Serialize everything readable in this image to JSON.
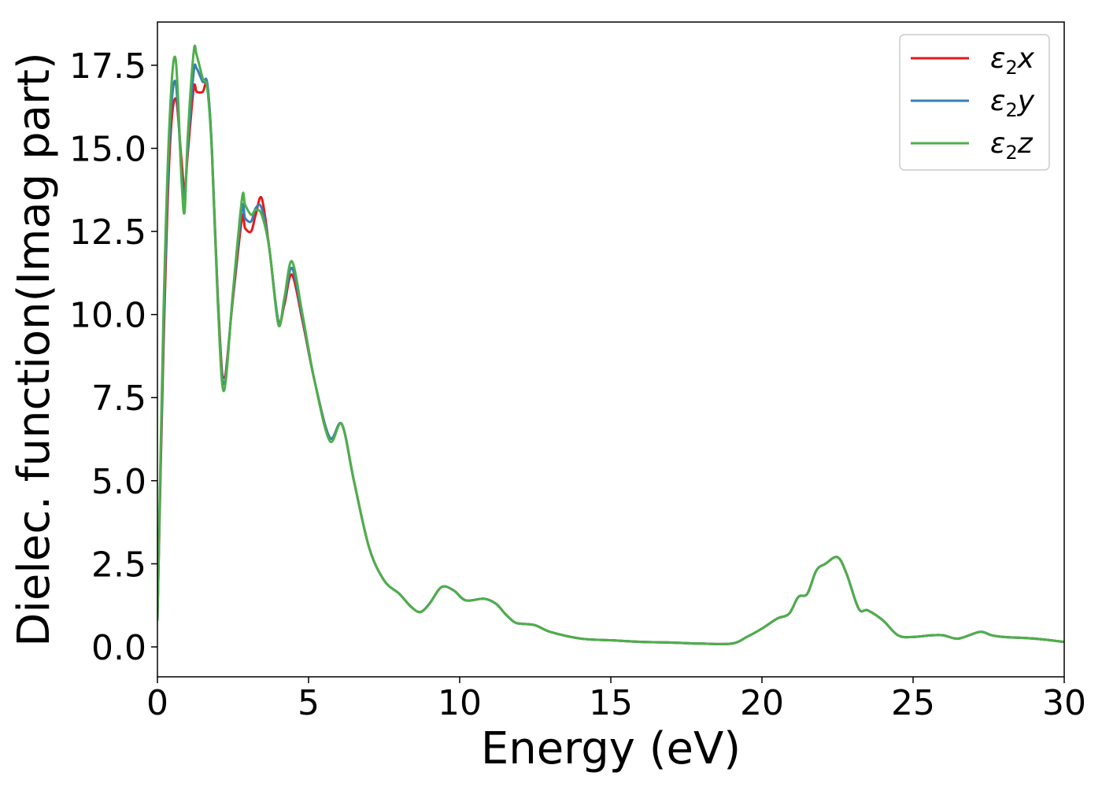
{
  "chart_data": {
    "type": "line",
    "title": "",
    "xlabel": "Energy (eV)",
    "ylabel": "Dielec. function(Imag part)",
    "xlim": [
      0,
      30
    ],
    "ylim": [
      -0.9,
      18.8
    ],
    "xticks": [
      0,
      5,
      10,
      15,
      20,
      25,
      30
    ],
    "xtick_labels": [
      "0",
      "5",
      "10",
      "15",
      "20",
      "25",
      "30"
    ],
    "yticks": [
      0.0,
      2.5,
      5.0,
      7.5,
      10.0,
      12.5,
      15.0,
      17.5
    ],
    "ytick_labels": [
      "0.0",
      "2.5",
      "5.0",
      "7.5",
      "10.0",
      "12.5",
      "15.0",
      "17.5"
    ],
    "grid": false,
    "legend_position": "top-right",
    "series": [
      {
        "name": "ε2x",
        "legend_base": "ε",
        "legend_sub": "2",
        "legend_tail": "x",
        "color": "#e41a1c",
        "x": [
          0,
          0.2,
          0.4,
          0.6,
          0.8,
          0.9,
          1.0,
          1.2,
          1.3,
          1.5,
          1.65,
          1.8,
          2.0,
          2.2,
          2.5,
          2.8,
          2.9,
          3.1,
          3.25,
          3.45,
          3.7,
          4.0,
          4.2,
          4.45,
          4.8,
          5.2,
          5.7,
          6.1,
          6.5,
          7.0,
          7.5,
          8.0,
          8.4,
          8.7,
          9.0,
          9.4,
          9.8,
          10.2,
          10.8,
          11.2,
          11.5,
          11.8,
          12.0,
          12.5,
          13.0,
          14.0,
          15.0,
          16.0,
          17.0,
          18.0,
          19.0,
          19.5,
          20.0,
          20.5,
          20.9,
          21.2,
          21.5,
          21.8,
          22.1,
          22.5,
          22.8,
          23.2,
          23.5,
          24.0,
          24.5,
          25.0,
          25.6,
          26.0,
          26.5,
          27.2,
          27.6,
          28.0,
          29.0,
          30.0
        ],
        "y": [
          0.8,
          9.0,
          14.8,
          16.5,
          14.6,
          13.7,
          14.8,
          16.8,
          16.7,
          16.7,
          16.9,
          15.0,
          10.5,
          8.1,
          10.5,
          12.9,
          12.6,
          12.5,
          13.0,
          13.5,
          12.0,
          9.8,
          10.3,
          11.2,
          9.8,
          8.0,
          6.3,
          6.7,
          5.0,
          3.0,
          2.0,
          1.6,
          1.2,
          1.05,
          1.3,
          1.8,
          1.7,
          1.4,
          1.45,
          1.3,
          1.0,
          0.75,
          0.7,
          0.65,
          0.45,
          0.25,
          0.2,
          0.15,
          0.13,
          0.1,
          0.1,
          0.3,
          0.55,
          0.85,
          1.0,
          1.5,
          1.6,
          2.3,
          2.5,
          2.7,
          2.2,
          1.15,
          1.1,
          0.8,
          0.35,
          0.3,
          0.35,
          0.35,
          0.25,
          0.45,
          0.35,
          0.3,
          0.25,
          0.15
        ]
      },
      {
        "name": "ε2y",
        "legend_base": "ε",
        "legend_sub": "2",
        "legend_tail": "y",
        "color": "#377eb8",
        "x": [
          0,
          0.2,
          0.4,
          0.6,
          0.8,
          0.9,
          1.0,
          1.2,
          1.3,
          1.5,
          1.65,
          1.8,
          2.0,
          2.2,
          2.5,
          2.8,
          2.9,
          3.1,
          3.25,
          3.45,
          3.7,
          4.0,
          4.2,
          4.45,
          4.8,
          5.2,
          5.7,
          6.1,
          6.5,
          7.0,
          7.5,
          8.0,
          8.4,
          8.7,
          9.0,
          9.4,
          9.8,
          10.2,
          10.8,
          11.2,
          11.5,
          11.8,
          12.0,
          12.5,
          13.0,
          14.0,
          15.0,
          16.0,
          17.0,
          18.0,
          19.0,
          19.5,
          20.0,
          20.5,
          20.9,
          21.2,
          21.5,
          21.8,
          22.1,
          22.5,
          22.8,
          23.2,
          23.5,
          24.0,
          24.5,
          25.0,
          25.6,
          26.0,
          26.5,
          27.2,
          27.6,
          28.0,
          29.0,
          30.0
        ],
        "y": [
          0.8,
          9.5,
          15.3,
          17.0,
          14.2,
          13.5,
          15.0,
          17.3,
          17.4,
          17.0,
          16.95,
          15.0,
          10.4,
          7.9,
          10.6,
          13.2,
          12.9,
          12.8,
          13.2,
          13.2,
          12.0,
          9.8,
          10.4,
          11.4,
          9.9,
          8.0,
          6.3,
          6.7,
          5.0,
          3.0,
          2.0,
          1.6,
          1.2,
          1.05,
          1.3,
          1.8,
          1.7,
          1.4,
          1.45,
          1.3,
          1.0,
          0.75,
          0.7,
          0.65,
          0.45,
          0.25,
          0.2,
          0.15,
          0.13,
          0.1,
          0.1,
          0.3,
          0.55,
          0.85,
          1.0,
          1.5,
          1.6,
          2.3,
          2.5,
          2.7,
          2.2,
          1.15,
          1.1,
          0.8,
          0.35,
          0.3,
          0.35,
          0.35,
          0.25,
          0.45,
          0.35,
          0.3,
          0.25,
          0.15
        ]
      },
      {
        "name": "ε2z",
        "legend_base": "ε",
        "legend_sub": "2",
        "legend_tail": "z",
        "color": "#4daf4a",
        "x": [
          0,
          0.2,
          0.4,
          0.6,
          0.8,
          0.9,
          1.0,
          1.2,
          1.3,
          1.5,
          1.65,
          1.8,
          2.0,
          2.2,
          2.5,
          2.8,
          2.9,
          3.1,
          3.25,
          3.45,
          3.7,
          4.0,
          4.2,
          4.45,
          4.8,
          5.2,
          5.7,
          6.1,
          6.5,
          7.0,
          7.5,
          8.0,
          8.4,
          8.7,
          9.0,
          9.4,
          9.8,
          10.2,
          10.8,
          11.2,
          11.5,
          11.8,
          12.0,
          12.5,
          13.0,
          14.0,
          15.0,
          16.0,
          17.0,
          18.0,
          19.0,
          19.5,
          20.0,
          20.5,
          20.9,
          21.2,
          21.5,
          21.8,
          22.1,
          22.5,
          22.8,
          23.2,
          23.5,
          24.0,
          24.5,
          25.0,
          25.6,
          26.0,
          26.5,
          27.2,
          27.6,
          28.0,
          29.0,
          30.0
        ],
        "y": [
          0.8,
          10.0,
          15.8,
          17.7,
          14.0,
          13.1,
          15.3,
          17.9,
          17.8,
          17.1,
          16.8,
          14.9,
          10.3,
          7.7,
          10.7,
          13.5,
          13.3,
          13.0,
          13.15,
          13.0,
          12.0,
          9.7,
          10.5,
          11.6,
          10.0,
          8.0,
          6.2,
          6.7,
          5.0,
          3.0,
          2.0,
          1.6,
          1.2,
          1.05,
          1.3,
          1.8,
          1.7,
          1.4,
          1.45,
          1.3,
          1.0,
          0.75,
          0.7,
          0.65,
          0.45,
          0.25,
          0.2,
          0.15,
          0.13,
          0.1,
          0.1,
          0.3,
          0.55,
          0.85,
          1.0,
          1.5,
          1.6,
          2.3,
          2.5,
          2.7,
          2.2,
          1.15,
          1.1,
          0.8,
          0.35,
          0.3,
          0.35,
          0.35,
          0.25,
          0.45,
          0.35,
          0.3,
          0.25,
          0.15
        ]
      }
    ]
  }
}
